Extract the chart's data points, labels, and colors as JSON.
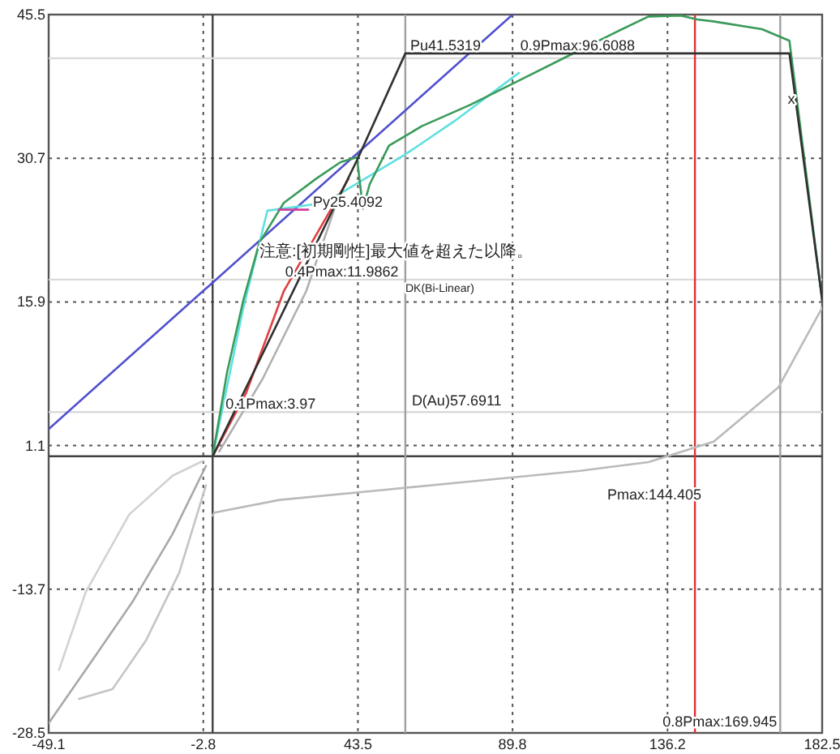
{
  "chart_data": {
    "type": "line",
    "xlim": [
      -49.1,
      182.5
    ],
    "ylim": [
      -28.5,
      45.5
    ],
    "xticks": [
      -49.1,
      -2.8,
      43.5,
      89.8,
      136.2,
      182.5
    ],
    "yticks": [
      -28.5,
      -13.7,
      1.1,
      15.9,
      30.7,
      45.5
    ],
    "grid": true,
    "line_style": "solid",
    "marker": "none",
    "series": [
      {
        "color": "#a8a8a8",
        "x": [
          -2,
          -12,
          -24,
          -36,
          -49.1
        ],
        "values": [
          -1,
          -8,
          -15,
          -21,
          -27.5
        ]
      },
      {
        "color": "#c4c4c4",
        "x": [
          -2,
          -10,
          -20,
          -30,
          -40
        ],
        "values": [
          -3,
          -12,
          -19,
          -24,
          -25
        ]
      },
      {
        "color": "#d2d2d2",
        "x": [
          -46,
          -38,
          -25,
          -12,
          -3
        ],
        "values": [
          -22,
          -14,
          -6,
          -2,
          -0.5
        ]
      },
      {
        "color": "#b0b0b0",
        "x": [
          2,
          15,
          28,
          38
        ],
        "values": [
          0.5,
          8,
          17,
          27
        ]
      },
      {
        "color": "#bababa",
        "x": [
          0,
          0.5,
          20,
          50,
          80,
          110,
          130.5,
          150,
          169.4,
          182.5
        ],
        "values": [
          -6.1,
          -5.8,
          -4.5,
          -3.5,
          -2.5,
          -1.5,
          -0.6,
          1.5,
          7.1,
          15.3
        ]
      },
      {
        "color": "#5050d0",
        "x": [
          -49.1,
          89.8
        ],
        "values": [
          2.8,
          45.5
        ]
      },
      {
        "color": "#60e0e0",
        "x": [
          0,
          9.2,
          16.4,
          33.4,
          43.2,
          57.7,
          72.3,
          91.7
        ],
        "values": [
          0,
          15.3,
          25.3,
          26.1,
          28.1,
          31.1,
          34.5,
          39.5
        ]
      },
      {
        "color": "#e04040",
        "x": [
          0,
          10,
          21.3,
          40.7
        ],
        "values": [
          0,
          6.5,
          17.0,
          28.6
        ]
      },
      {
        "color": "#3a9a5a",
        "x": [
          0,
          4.3,
          9.2,
          14.0,
          21.3,
          31.0,
          38.3,
          43.2,
          45.0,
          47.0,
          52.8,
          62.6,
          77.1,
          91.7,
          106.2,
          120.8,
          130.5,
          140.2,
          145.1,
          149.9,
          164.5,
          172.7,
          182.5
        ],
        "values": [
          0,
          8.6,
          16.1,
          22.0,
          26.1,
          28.6,
          30.3,
          30.8,
          25.5,
          28.0,
          32.0,
          34.0,
          36.2,
          38.7,
          41.2,
          43.7,
          45.3,
          45.4,
          45.0,
          44.8,
          44.0,
          42.8,
          16.1
        ]
      },
      {
        "color": "#d040a0",
        "x": [
          19.8,
          28.6
        ],
        "values": [
          25.4,
          25.4
        ]
      },
      {
        "color": "#303030",
        "x": [
          0,
          43.5,
          57.7,
          172.7,
          182.5
        ],
        "values": [
          0,
          30.7,
          41.5,
          41.5,
          16.1
        ]
      }
    ],
    "ref_lines": [
      {
        "axis": "x",
        "value": 0,
        "color": "#404040"
      },
      {
        "axis": "y",
        "value": 0,
        "color": "#404040"
      },
      {
        "axis": "y",
        "value": 41.0,
        "color": "#dadada"
      },
      {
        "axis": "y",
        "value": 18.2,
        "color": "#dadada"
      },
      {
        "axis": "y",
        "value": 4.55,
        "color": "#dadada"
      },
      {
        "axis": "x",
        "value": 57.6911,
        "label": "D(Au)57.6911",
        "color": "#a0a0a0"
      },
      {
        "axis": "x",
        "value": 144.405,
        "label": "Pmax:144.405",
        "color": "#e03030"
      },
      {
        "axis": "x",
        "value": 169.945,
        "label": "0.8Pmax:169.945",
        "color": "#a0a0a0"
      }
    ],
    "annotations": [
      {
        "text": "Pu41.5319",
        "x": 57.7,
        "y": 41.5319
      },
      {
        "text": "0.9Pmax:96.6088",
        "x": 90.7,
        "y": 41.5
      },
      {
        "text": "x",
        "x": 170.7,
        "y": 36.0
      },
      {
        "text": "Py25.4092",
        "x": 28.6,
        "y": 25.4
      },
      {
        "text": "0.4Pmax:11.9862",
        "x": 20.3,
        "y": 18.2
      },
      {
        "text": "0.1Pmax:3.97",
        "x": 2.4,
        "y": 4.55
      },
      "注意:[初期剛性]最大値を超えた以降。",
      "DK(Bi-Linear)"
    ]
  }
}
